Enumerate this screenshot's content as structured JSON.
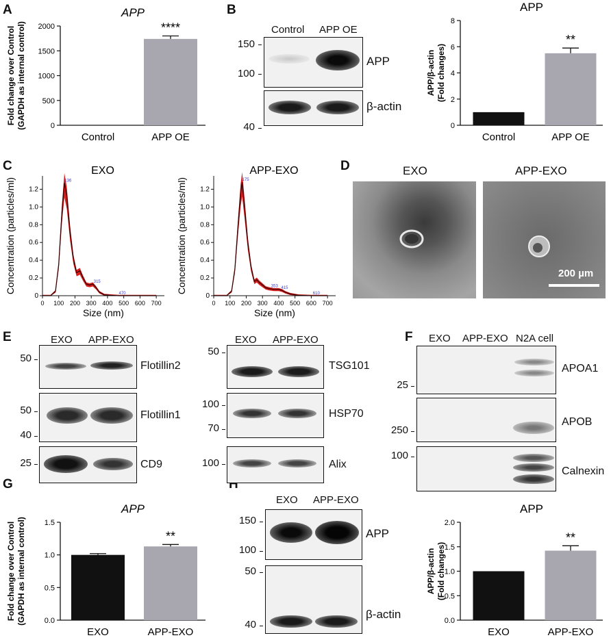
{
  "panels": {
    "A": "A",
    "B": "B",
    "C": "C",
    "D": "D",
    "E": "E",
    "F": "F",
    "G": "G",
    "H": "H"
  },
  "colors": {
    "black_bar": "#111111",
    "grey_bar": "#a8a7b0",
    "nta_red": "#d71f1f",
    "nta_dark": "#3b0000",
    "label_blue": "#3a3ad8"
  },
  "panel_a": {
    "chart_data": {
      "type": "bar",
      "title": "APP",
      "ylabel_line1": "Fold change over Control",
      "ylabel_line2": "(GAPDH as internal control)",
      "categories": [
        "Control",
        "APP OE"
      ],
      "values": [
        1,
        1740
      ],
      "errors": [
        0,
        60
      ],
      "ylim": [
        0,
        2000
      ],
      "yticks": [
        "0",
        "500",
        "1000",
        "1500",
        "2000"
      ],
      "significance": "****"
    }
  },
  "panel_b": {
    "blot": {
      "lanes": [
        "Control",
        "APP OE"
      ],
      "mw_top": [
        "150",
        "100"
      ],
      "mw_bottom": "40",
      "targets": [
        "APP",
        "β-actin"
      ]
    },
    "chart_data": {
      "type": "bar",
      "title": "APP",
      "ylabel_line1": "APP/β-actin",
      "ylabel_line2": "(Fold changes)",
      "categories": [
        "Control",
        "APP OE"
      ],
      "values": [
        1.0,
        5.5
      ],
      "errors": [
        0,
        0.4
      ],
      "ylim": [
        0,
        8
      ],
      "yticks": [
        "0",
        "2",
        "4",
        "6",
        "8"
      ],
      "significance": "**"
    }
  },
  "panel_c": {
    "chart_data": [
      {
        "type": "area",
        "title": "EXO",
        "xlabel": "Size (nm)",
        "ylabel": "Concentration (particles/ml)",
        "x": [
          0,
          50,
          80,
          100,
          120,
          135,
          150,
          170,
          190,
          210,
          230,
          250,
          270,
          290,
          310,
          330,
          350,
          380,
          420,
          470,
          550,
          650,
          700
        ],
        "y": [
          0,
          0,
          0.05,
          0.35,
          0.95,
          1.27,
          1.12,
          0.72,
          0.42,
          0.26,
          0.28,
          0.2,
          0.13,
          0.12,
          0.13,
          0.09,
          0.04,
          0.01,
          0.005,
          0,
          0,
          0,
          0
        ],
        "xlim": [
          0,
          750
        ],
        "ylim": [
          0,
          1.35
        ],
        "xticks": [
          "0",
          "100",
          "200",
          "300",
          "400",
          "500",
          "600",
          "700"
        ],
        "yticks": [
          "0",
          "0.2",
          "0.4",
          "0.6",
          "0.8",
          "1.0",
          "1.2"
        ],
        "peak_labels": [
          "136",
          "315",
          "470"
        ]
      },
      {
        "type": "area",
        "title": "APP-EXO",
        "xlabel": "Size (nm)",
        "ylabel": "Concentration (particles/ml)",
        "x": [
          0,
          80,
          110,
          130,
          150,
          165,
          175,
          190,
          210,
          230,
          250,
          265,
          280,
          300,
          320,
          340,
          370,
          400,
          420,
          440,
          470,
          520,
          600,
          650,
          700
        ],
        "y": [
          0,
          0,
          0.05,
          0.3,
          0.8,
          1.15,
          1.28,
          1.0,
          0.6,
          0.32,
          0.16,
          0.18,
          0.15,
          0.12,
          0.09,
          0.08,
          0.07,
          0.07,
          0.06,
          0.04,
          0.02,
          0.005,
          0,
          0,
          0
        ],
        "xlim": [
          0,
          750
        ],
        "ylim": [
          0,
          1.35
        ],
        "xticks": [
          "0",
          "100",
          "200",
          "300",
          "400",
          "500",
          "600",
          "700"
        ],
        "yticks": [
          "0",
          "0.2",
          "0.4",
          "0.6",
          "0.8",
          "1.0",
          "1.2"
        ],
        "peak_labels": [
          "175",
          "353",
          "415",
          "610"
        ]
      }
    ]
  },
  "panel_d": {
    "left_title": "EXO",
    "right_title": "APP-EXO",
    "scale_bar": "200 µm"
  },
  "panel_e": {
    "left": {
      "lanes": [
        "EXO",
        "APP-EXO"
      ],
      "blots": [
        {
          "mw": [
            "50"
          ],
          "target": "Flotillin2"
        },
        {
          "mw": [
            "50",
            "40"
          ],
          "target": "Flotillin1"
        },
        {
          "mw": [
            "25"
          ],
          "target": "CD9"
        }
      ]
    },
    "right": {
      "lanes": [
        "EXO",
        "APP-EXO"
      ],
      "blots": [
        {
          "mw": [
            "50"
          ],
          "target": "TSG101"
        },
        {
          "mw": [
            "100",
            "70"
          ],
          "target": "HSP70"
        },
        {
          "mw": [
            "100"
          ],
          "target": "Alix"
        }
      ]
    }
  },
  "panel_f": {
    "lanes": [
      "EXO",
      "APP-EXO",
      "N2A cell"
    ],
    "blots": [
      {
        "mw": "25",
        "target": "APOA1"
      },
      {
        "mw": "250",
        "target": "APOB"
      },
      {
        "mw": "100",
        "target": "Calnexin"
      }
    ]
  },
  "panel_g": {
    "chart_data": {
      "type": "bar",
      "title": "APP",
      "ylabel_line1": "Fold change over Control",
      "ylabel_line2": "(GAPDH as internal control)",
      "categories": [
        "EXO",
        "APP-EXO"
      ],
      "values": [
        1.0,
        1.13
      ],
      "errors": [
        0.02,
        0.03
      ],
      "ylim": [
        0,
        1.5
      ],
      "yticks": [
        "0.0",
        "0.5",
        "1.0",
        "1.5"
      ],
      "significance": "**"
    }
  },
  "panel_h": {
    "blot": {
      "lanes": [
        "EXO",
        "APP-EXO"
      ],
      "mw_top": [
        "150",
        "100"
      ],
      "mw_bottom": [
        "50",
        "40"
      ],
      "targets": [
        "APP",
        "β-actin"
      ]
    },
    "chart_data": {
      "type": "bar",
      "title": "APP",
      "ylabel_line1": "APP/β-actin",
      "ylabel_line2": "(Fold changes)",
      "categories": [
        "EXO",
        "APP-EXO"
      ],
      "values": [
        1.0,
        1.42
      ],
      "errors": [
        0,
        0.1
      ],
      "ylim": [
        0,
        2.0
      ],
      "yticks": [
        "0.0",
        "0.5",
        "1.0",
        "1.5",
        "2.0"
      ],
      "significance": "**"
    }
  }
}
